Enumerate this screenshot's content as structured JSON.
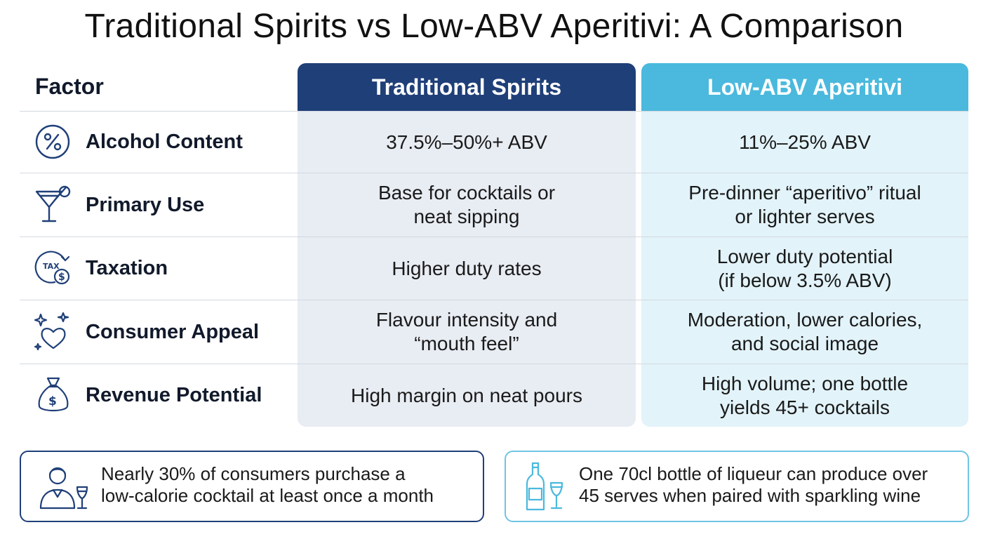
{
  "title": "Traditional Spirits vs Low-ABV Aperitivi: A Comparison",
  "columns": {
    "factor": "Factor",
    "traditional": "Traditional Spirits",
    "low_abv": "Low-ABV Aperitivi"
  },
  "colors": {
    "traditional_header": "#1f3f78",
    "low_abv_header": "#4ab9dd",
    "traditional_bg": "#e8ecf3",
    "low_abv_bg": "#e2f3f9"
  },
  "rows": [
    {
      "icon": "percent-icon",
      "factor": "Alcohol Content",
      "traditional": "37.5%–50%+ ABV",
      "low_abv": "11%–25% ABV"
    },
    {
      "icon": "cocktail-glass-icon",
      "factor": "Primary Use",
      "traditional": "Base for cocktails or\nneat sipping",
      "low_abv": "Pre-dinner “aperitivo” ritual\nor lighter serves"
    },
    {
      "icon": "tax-coin-icon",
      "factor": "Taxation",
      "traditional": "Higher duty rates",
      "low_abv": "Lower duty potential\n(if below 3.5% ABV)"
    },
    {
      "icon": "sparkle-heart-icon",
      "factor": "Consumer Appeal",
      "traditional": "Flavour intensity and\n“mouth feel”",
      "low_abv": "Moderation, lower calories,\nand social image"
    },
    {
      "icon": "money-bag-icon",
      "factor": "Revenue Potential",
      "traditional": "High margin on neat pours",
      "low_abv": "High volume; one bottle\nyields 45+ cocktails"
    }
  ],
  "notes": [
    {
      "icon": "person-wine-icon",
      "text": "Nearly 30% of consumers purchase a\nlow-calorie cocktail at least once a month"
    },
    {
      "icon": "bottle-glass-icon",
      "text": "One 70cl bottle of liqueur can produce over\n45 serves when paired with sparkling wine"
    }
  ]
}
